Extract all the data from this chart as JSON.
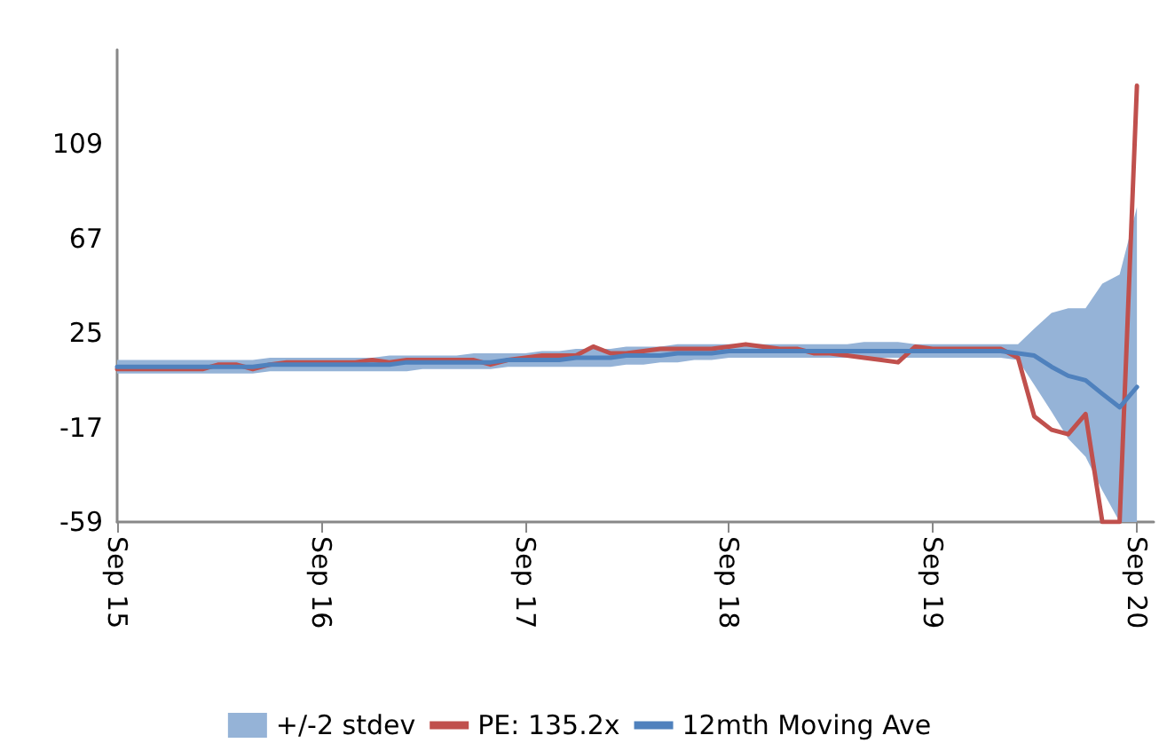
{
  "chart_data": {
    "type": "line",
    "x": [
      "2015-09",
      "2015-10",
      "2015-11",
      "2015-12",
      "2016-01",
      "2016-02",
      "2016-03",
      "2016-04",
      "2016-05",
      "2016-06",
      "2016-07",
      "2016-08",
      "2016-09",
      "2016-10",
      "2016-11",
      "2016-12",
      "2017-01",
      "2017-02",
      "2017-03",
      "2017-04",
      "2017-05",
      "2017-06",
      "2017-07",
      "2017-08",
      "2017-09",
      "2017-10",
      "2017-11",
      "2017-12",
      "2018-01",
      "2018-02",
      "2018-03",
      "2018-04",
      "2018-05",
      "2018-06",
      "2018-07",
      "2018-08",
      "2018-09",
      "2018-10",
      "2018-11",
      "2018-12",
      "2019-01",
      "2019-02",
      "2019-03",
      "2019-04",
      "2019-05",
      "2019-06",
      "2019-07",
      "2019-08",
      "2019-09",
      "2019-10",
      "2019-11",
      "2019-12",
      "2020-01",
      "2020-02",
      "2020-03",
      "2020-04",
      "2020-05",
      "2020-06",
      "2020-07",
      "2020-08",
      "2020-09"
    ],
    "series": [
      {
        "name": "+/-2 stdev",
        "type": "area",
        "color": "#95b3d7",
        "values": [
          null,
          null,
          null,
          null,
          null,
          null,
          null,
          null,
          null,
          null,
          null,
          null,
          null,
          null,
          null,
          null,
          null,
          null,
          null,
          null,
          null,
          null,
          null,
          null,
          null,
          null,
          null,
          null,
          null,
          null,
          null,
          null,
          null,
          null,
          null,
          null,
          null,
          null,
          null,
          null,
          null,
          null,
          null,
          null,
          null,
          null,
          null,
          null,
          null,
          null,
          null,
          null,
          null,
          null,
          null,
          null,
          null,
          null,
          null,
          null,
          null
        ],
        "lower": [
          7,
          7,
          7,
          7,
          7,
          7,
          7,
          7,
          7,
          8,
          8,
          8,
          8,
          8,
          8,
          8,
          8,
          8,
          9,
          9,
          9,
          9,
          9,
          10,
          10,
          10,
          10,
          10,
          10,
          10,
          11,
          11,
          12,
          12,
          13,
          13,
          14,
          14,
          14,
          14,
          14,
          14,
          14,
          14,
          14,
          14,
          14,
          14,
          14,
          14,
          14,
          14,
          14,
          13,
          2,
          -10,
          -22,
          -30,
          -45,
          -59,
          -59
        ],
        "upper": [
          13,
          13,
          13,
          13,
          13,
          13,
          13,
          13,
          13,
          14,
          14,
          14,
          14,
          14,
          14,
          14,
          15,
          15,
          15,
          15,
          15,
          16,
          16,
          16,
          16,
          17,
          17,
          18,
          18,
          18,
          19,
          19,
          19,
          20,
          20,
          20,
          20,
          20,
          20,
          20,
          20,
          20,
          20,
          20,
          21,
          21,
          21,
          20,
          20,
          20,
          20,
          20,
          20,
          20,
          27,
          34,
          36,
          36,
          47,
          51,
          81
        ]
      },
      {
        "name": "PE: 135.2x",
        "color": "#c0504d",
        "values": [
          9,
          9,
          9,
          9,
          9,
          9,
          11,
          11,
          9,
          11,
          12,
          12,
          12,
          12,
          12,
          13,
          12,
          13,
          13,
          13,
          13,
          13,
          11,
          13,
          14,
          15,
          15,
          15,
          19,
          16,
          16,
          17,
          18,
          18,
          18,
          18,
          19,
          20,
          19,
          18,
          18,
          16,
          16,
          15,
          14,
          13,
          12,
          19,
          18,
          18,
          18,
          18,
          18,
          14,
          -12,
          -18,
          -20,
          -11,
          -59,
          -59,
          135
        ]
      },
      {
        "name": "12mth Moving Ave",
        "color": "#4f81bd",
        "values": [
          10,
          10,
          10,
          10,
          10,
          10,
          10,
          10,
          10,
          11,
          11,
          11,
          11,
          11,
          11,
          11,
          11,
          12,
          12,
          12,
          12,
          12,
          12,
          13,
          13,
          13,
          13,
          14,
          14,
          14,
          15,
          15,
          15,
          16,
          16,
          16,
          17,
          17,
          17,
          17,
          17,
          17,
          17,
          17,
          17,
          17,
          17,
          17,
          17,
          17,
          17,
          17,
          17,
          16,
          15,
          10,
          6,
          4,
          -2,
          -8,
          1
        ]
      }
    ],
    "xlim": [
      "2015-09",
      "2020-10"
    ],
    "xticks": [
      {
        "value": "2015-09",
        "label": "Sep 15"
      },
      {
        "value": "2016-09",
        "label": "Sep 16"
      },
      {
        "value": "2017-09",
        "label": "Sep 17"
      },
      {
        "value": "2018-09",
        "label": "Sep 18"
      },
      {
        "value": "2019-09",
        "label": "Sep 19"
      },
      {
        "value": "2020-09",
        "label": "Sep 20"
      }
    ],
    "ylim": [
      -59,
      151
    ],
    "yticks": [
      -59,
      -17,
      25,
      67,
      109
    ],
    "grid": false,
    "legend": "bottom",
    "marker": "none",
    "line_style": "solid"
  }
}
